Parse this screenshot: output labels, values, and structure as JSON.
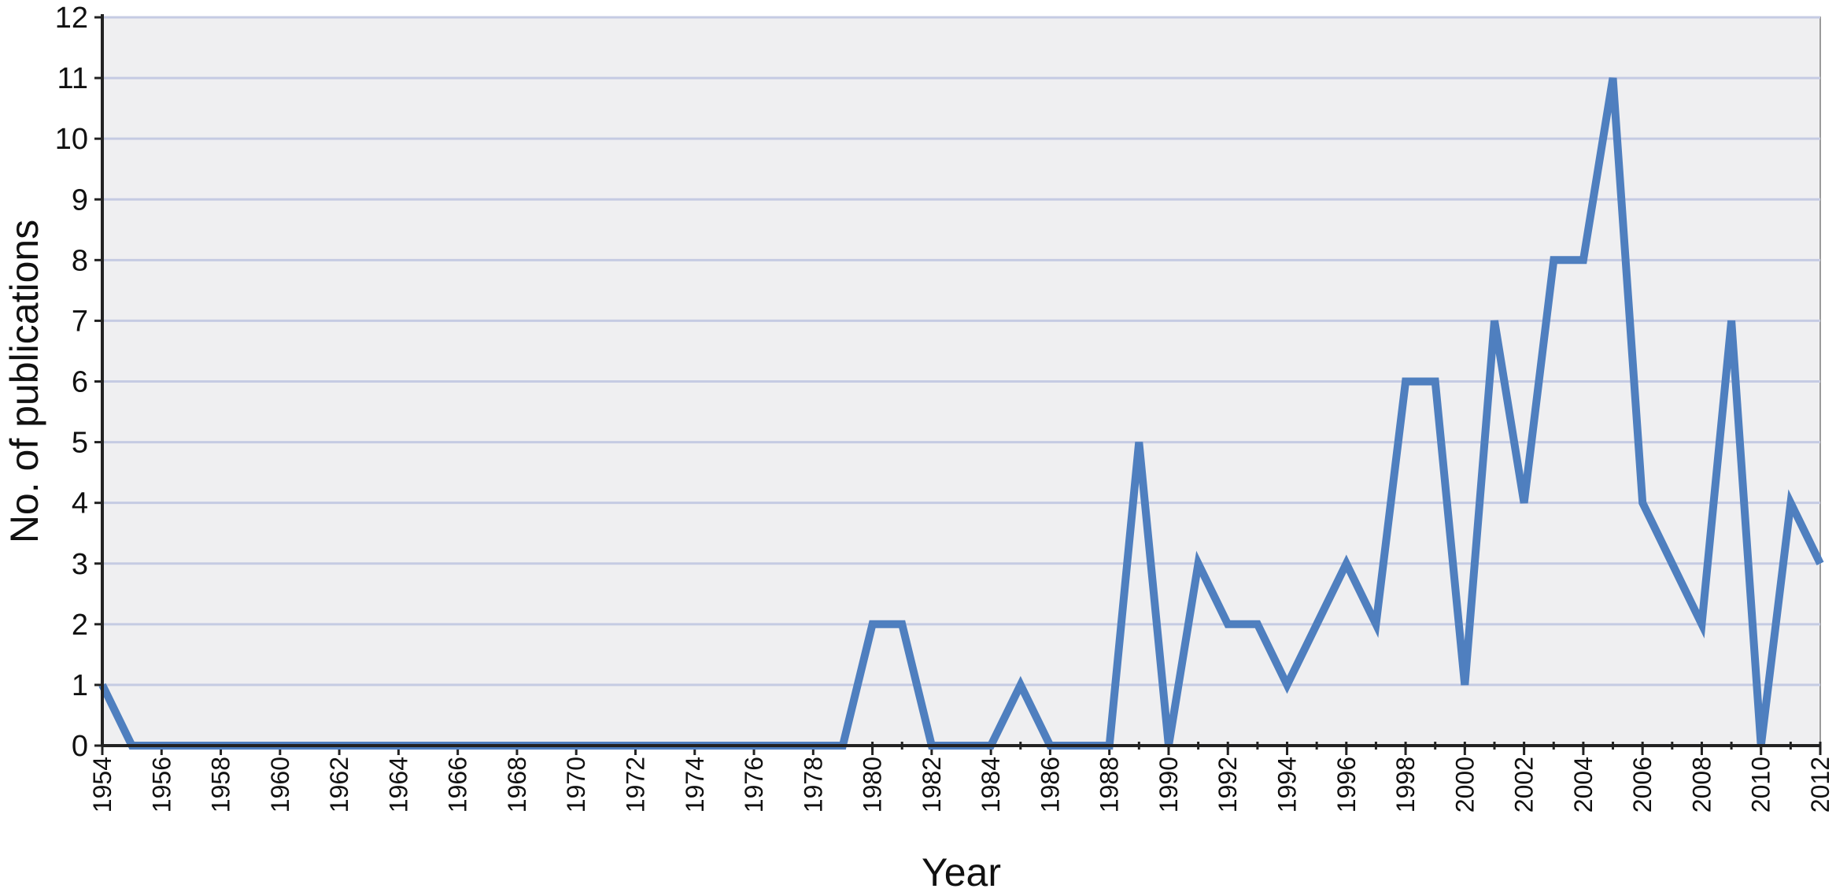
{
  "chart_data": {
    "type": "line",
    "title": "",
    "xlabel": "Year",
    "ylabel": "No. of publications",
    "xlim": [
      1954,
      2012
    ],
    "ylim": [
      0,
      12
    ],
    "x_tick_step": 2,
    "y_tick_step": 1,
    "grid": "horizontal",
    "legend": "none",
    "colors": {
      "plot_background": "#efeff1",
      "gridline": "#c5cbe3",
      "line": "#4f7fbf",
      "axis": "#222222"
    },
    "series": [
      {
        "x": [
          1954,
          1955,
          1956,
          1957,
          1958,
          1959,
          1960,
          1961,
          1962,
          1963,
          1964,
          1965,
          1966,
          1967,
          1968,
          1969,
          1970,
          1971,
          1972,
          1973,
          1974,
          1975,
          1976,
          1977,
          1978,
          1979,
          1980,
          1981,
          1982,
          1983,
          1984,
          1985,
          1986,
          1987,
          1988,
          1989,
          1990,
          1991,
          1992,
          1993,
          1994,
          1995,
          1996,
          1997,
          1998,
          1999,
          2000,
          2001,
          2002,
          2003,
          2004,
          2005,
          2006,
          2007,
          2008,
          2009,
          2010,
          2011,
          2012
        ],
        "values": [
          1,
          0,
          0,
          0,
          0,
          0,
          0,
          0,
          0,
          0,
          0,
          0,
          0,
          0,
          0,
          0,
          0,
          0,
          0,
          0,
          0,
          0,
          0,
          0,
          0,
          0,
          2,
          2,
          0,
          0,
          0,
          1,
          0,
          0,
          0,
          5,
          0,
          3,
          2,
          2,
          1,
          2,
          3,
          2,
          6,
          6,
          1,
          7,
          4,
          8,
          8,
          11,
          4,
          3,
          2,
          7,
          0,
          4,
          3
        ]
      }
    ]
  }
}
